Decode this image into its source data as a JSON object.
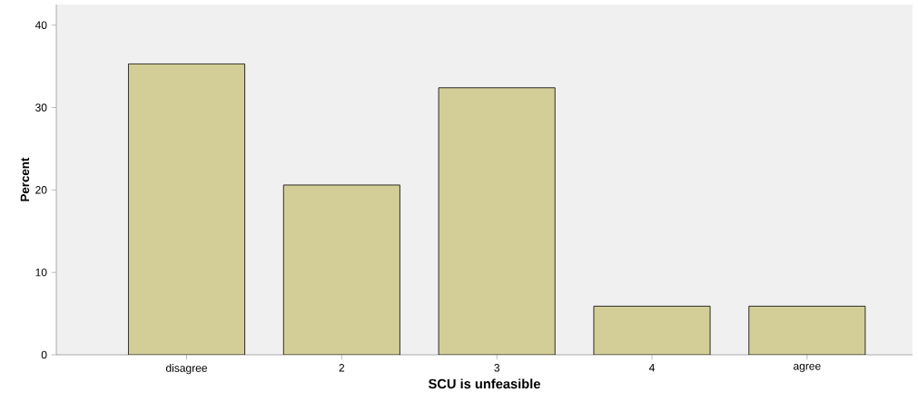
{
  "chart_data": {
    "type": "bar",
    "xlabel": "SCU is unfeasible",
    "ylabel": "Percent",
    "categories": [
      "disagree",
      "2",
      "3",
      "4",
      "agree"
    ],
    "values": [
      35.3,
      20.6,
      32.4,
      5.9,
      5.9
    ],
    "color": "#d3ce97",
    "ylim": [
      0,
      42.5
    ],
    "yticks": [
      0,
      10,
      20,
      30,
      40
    ],
    "grid": false
  }
}
